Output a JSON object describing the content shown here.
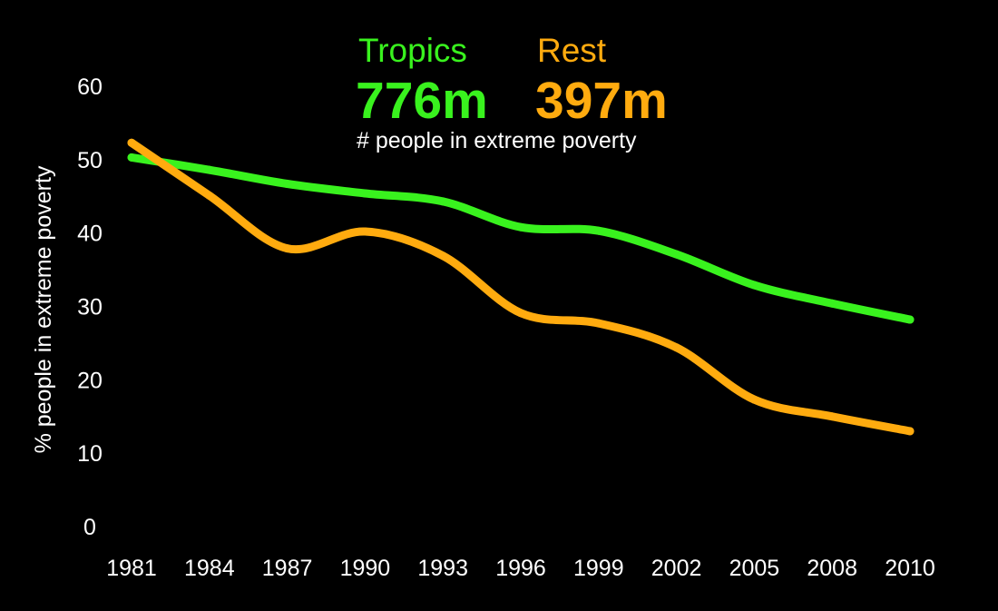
{
  "chart_data": {
    "type": "line",
    "ylabel": "% people in extreme poverty",
    "ylim": [
      0,
      60
    ],
    "yticks": [
      0,
      10,
      20,
      30,
      40,
      50,
      60
    ],
    "x": [
      1981,
      1984,
      1987,
      1990,
      1993,
      1996,
      1999,
      2002,
      2005,
      2008,
      2010
    ],
    "xtick_labels": [
      "1981",
      "1984",
      "1987",
      "1990",
      "1993",
      "1996",
      "1999",
      "2002",
      "2005",
      "2008",
      "2010"
    ],
    "grid": false,
    "legend_position": "top-center",
    "series": [
      {
        "name": "Tropics",
        "total": "776m",
        "color": "#39f21e",
        "values": [
          50.3,
          48.6,
          46.7,
          45.4,
          44.3,
          40.8,
          40.3,
          37.1,
          32.9,
          30.4,
          28.2
        ]
      },
      {
        "name": "Rest",
        "total": "397m",
        "color": "#ffab0f",
        "values": [
          52.3,
          45.1,
          37.9,
          40.2,
          36.9,
          29.1,
          27.7,
          24.4,
          17.3,
          15.0,
          13.0
        ]
      }
    ],
    "annotation": "# people in extreme poverty"
  }
}
